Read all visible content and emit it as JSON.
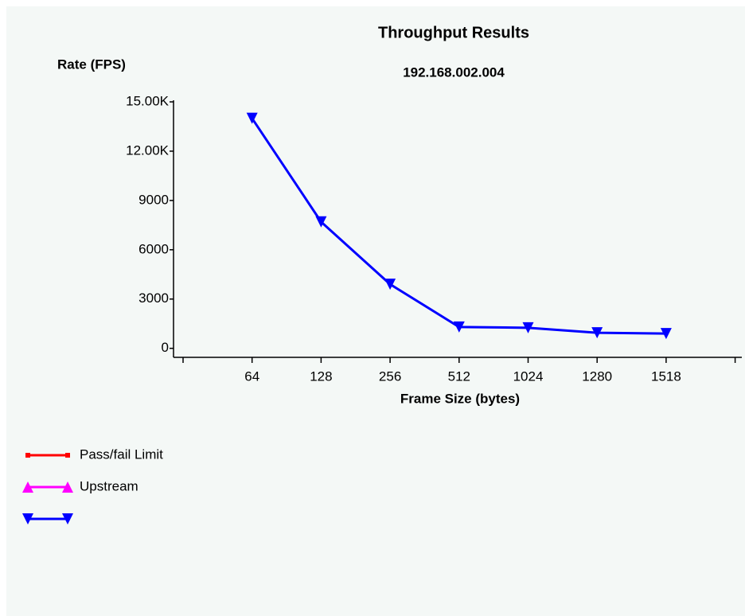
{
  "chart_data": {
    "type": "line",
    "title": "Throughput Results",
    "subtitle": "192.168.002.004",
    "y_label": "Rate (FPS)",
    "x_label": "Frame Size (bytes)",
    "categories": [
      "64",
      "128",
      "256",
      "512",
      "1024",
      "1280",
      "1518"
    ],
    "series": [
      {
        "name": "Pass/fail Limit",
        "color": "#ff0000",
        "marker": "square",
        "values": [
          null,
          null,
          null,
          null,
          null,
          null,
          null
        ]
      },
      {
        "name": "Upstream",
        "color": "#ff00ff",
        "marker": "triangle-up",
        "values": [
          null,
          null,
          null,
          null,
          null,
          null,
          null
        ]
      },
      {
        "color": "#0000ff",
        "marker": "triangle-down",
        "values": [
          14000,
          7700,
          3900,
          1300,
          1250,
          950,
          900
        ]
      }
    ],
    "ylim": [
      -500,
      15000
    ],
    "yticks": [
      0,
      3000,
      6000,
      9000,
      {
        "value": 12000,
        "label": "12.00K"
      },
      {
        "value": 15000,
        "label": "15.00K"
      }
    ],
    "grid": false
  }
}
